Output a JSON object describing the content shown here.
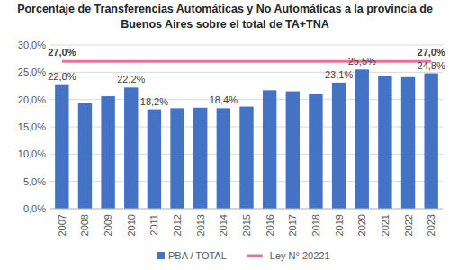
{
  "chart_data": {
    "type": "bar",
    "title": "Porcentaje de Transferencias Automáticas y No Automáticas a la provincia de\nBuenos Aires sobre el total de TA+TNA",
    "categories": [
      "2007",
      "2008",
      "2009",
      "2010",
      "2011",
      "2012",
      "2013",
      "2014",
      "2015",
      "2016",
      "2017",
      "2018",
      "2019",
      "2020",
      "2021",
      "2022",
      "2023"
    ],
    "series": [
      {
        "name": "PBA / TOTAL",
        "type": "bar",
        "color": "#4472c4",
        "values": [
          22.8,
          19.3,
          20.6,
          22.2,
          18.2,
          18.4,
          18.5,
          18.4,
          18.7,
          21.7,
          21.5,
          21.0,
          23.1,
          25.5,
          24.4,
          24.1,
          24.8
        ],
        "value_labels": [
          "22,8%",
          null,
          null,
          "22,2%",
          "18,2%",
          null,
          null,
          "18,4%",
          null,
          null,
          null,
          null,
          "23,1%",
          "25,5%",
          null,
          null,
          "24,8%"
        ]
      },
      {
        "name": "Ley N° 20221",
        "type": "line",
        "color": "#e6709e",
        "values": [
          27,
          27,
          27,
          27,
          27,
          27,
          27,
          27,
          27,
          27,
          27,
          27,
          27,
          27,
          27,
          27,
          27
        ],
        "value_labels": [
          "27,0%",
          null,
          null,
          null,
          null,
          null,
          null,
          null,
          null,
          null,
          null,
          null,
          null,
          null,
          null,
          null,
          "27,0%"
        ]
      }
    ],
    "ylim": [
      0,
      30
    ],
    "yticks": [
      {
        "value": 0,
        "label": "0,0%"
      },
      {
        "value": 5,
        "label": "5,0%"
      },
      {
        "value": 10,
        "label": "10,0%"
      },
      {
        "value": 15,
        "label": "15,0%"
      },
      {
        "value": 20,
        "label": "20,0%"
      },
      {
        "value": 25,
        "label": "25,0%"
      },
      {
        "value": 30,
        "label": "30,0%"
      }
    ],
    "grid": true,
    "data_labels": true,
    "legend": "bottom"
  }
}
